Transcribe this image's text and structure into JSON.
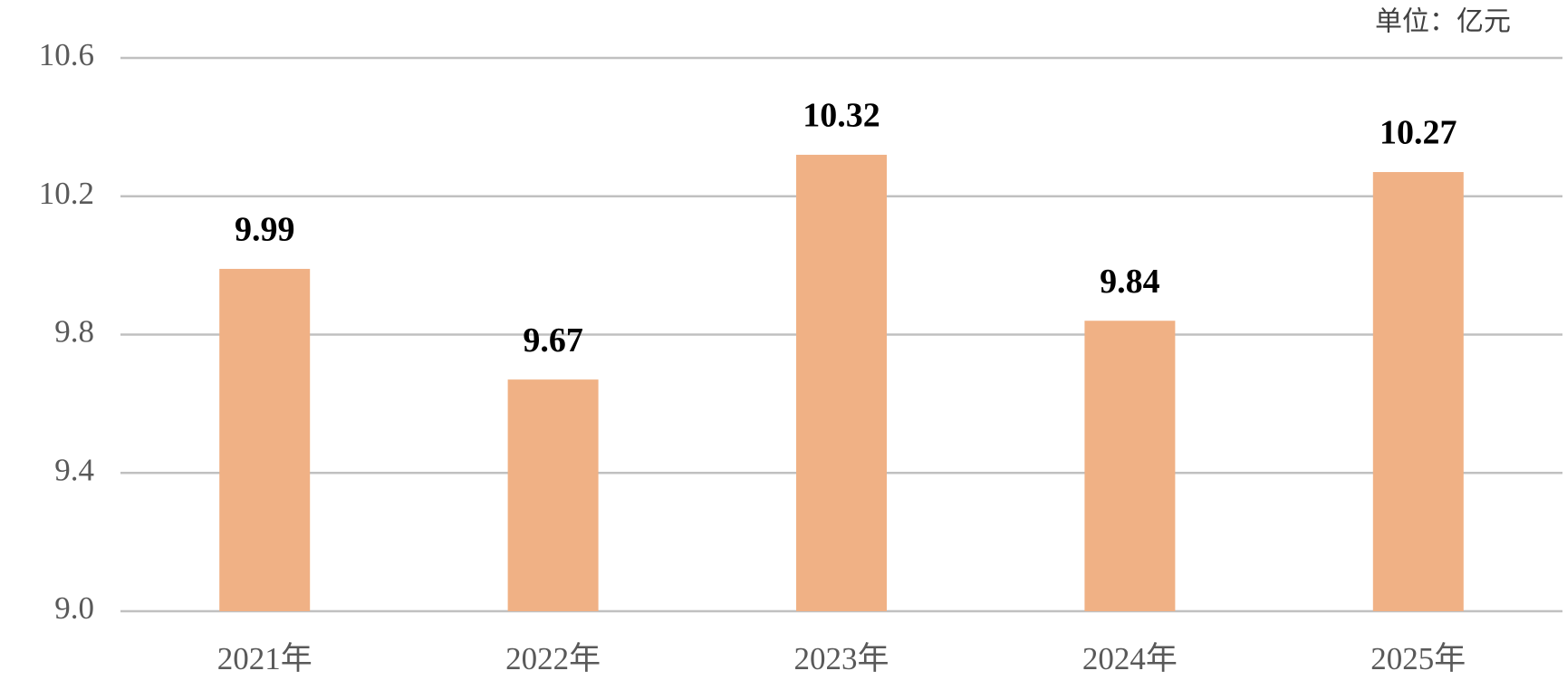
{
  "chart_data": {
    "type": "bar",
    "unit": "单位：亿元",
    "categories": [
      "2021年",
      "2022年",
      "2023年",
      "2024年",
      "2025年"
    ],
    "values": [
      9.99,
      9.67,
      10.32,
      9.84,
      10.27
    ],
    "color": "#f0b185",
    "ylim": [
      9.0,
      10.6
    ],
    "yticks": [
      {
        "value": 9,
        "label": "9.0"
      },
      9.4,
      9.8,
      10.2,
      10.6
    ],
    "grid": true
  }
}
